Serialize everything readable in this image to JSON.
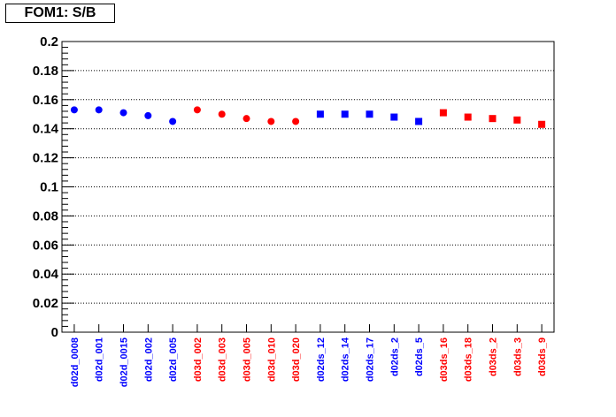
{
  "title": "FOM1: S/B",
  "chart_data": {
    "type": "scatter",
    "title": "FOM1: S/B",
    "xlabel": "",
    "ylabel": "",
    "ylim": [
      0,
      0.2
    ],
    "yticks": [
      "0",
      "0.02",
      "0.04",
      "0.06",
      "0.08",
      "0.1",
      "0.12",
      "0.14",
      "0.16",
      "0.18",
      "0.2"
    ],
    "grid": "horizontal dotted",
    "categories": [
      "d02d_0008",
      "d02d_001",
      "d02d_0015",
      "d02d_002",
      "d02d_005",
      "d03d_002",
      "d03d_003",
      "d03d_005",
      "d03d_010",
      "d03d_020",
      "d02ds_12",
      "d02ds_14",
      "d02ds_17",
      "d02ds_2",
      "d02ds_5",
      "d03ds_16",
      "d03ds_18",
      "d03ds_2",
      "d03ds_3",
      "d03ds_9"
    ],
    "values": [
      0.153,
      0.153,
      0.151,
      0.149,
      0.145,
      0.153,
      0.15,
      0.147,
      0.145,
      0.145,
      0.15,
      0.15,
      0.15,
      0.148,
      0.145,
      0.151,
      0.148,
      0.147,
      0.146,
      0.143
    ],
    "markers": [
      "circle",
      "circle",
      "circle",
      "circle",
      "circle",
      "circle",
      "circle",
      "circle",
      "circle",
      "circle",
      "square",
      "square",
      "square",
      "square",
      "square",
      "square",
      "square",
      "square",
      "square",
      "square"
    ],
    "colors": [
      "#0000ff",
      "#0000ff",
      "#0000ff",
      "#0000ff",
      "#0000ff",
      "#ff0000",
      "#ff0000",
      "#ff0000",
      "#ff0000",
      "#ff0000",
      "#0000ff",
      "#0000ff",
      "#0000ff",
      "#0000ff",
      "#0000ff",
      "#ff0000",
      "#ff0000",
      "#ff0000",
      "#ff0000",
      "#ff0000"
    ]
  }
}
